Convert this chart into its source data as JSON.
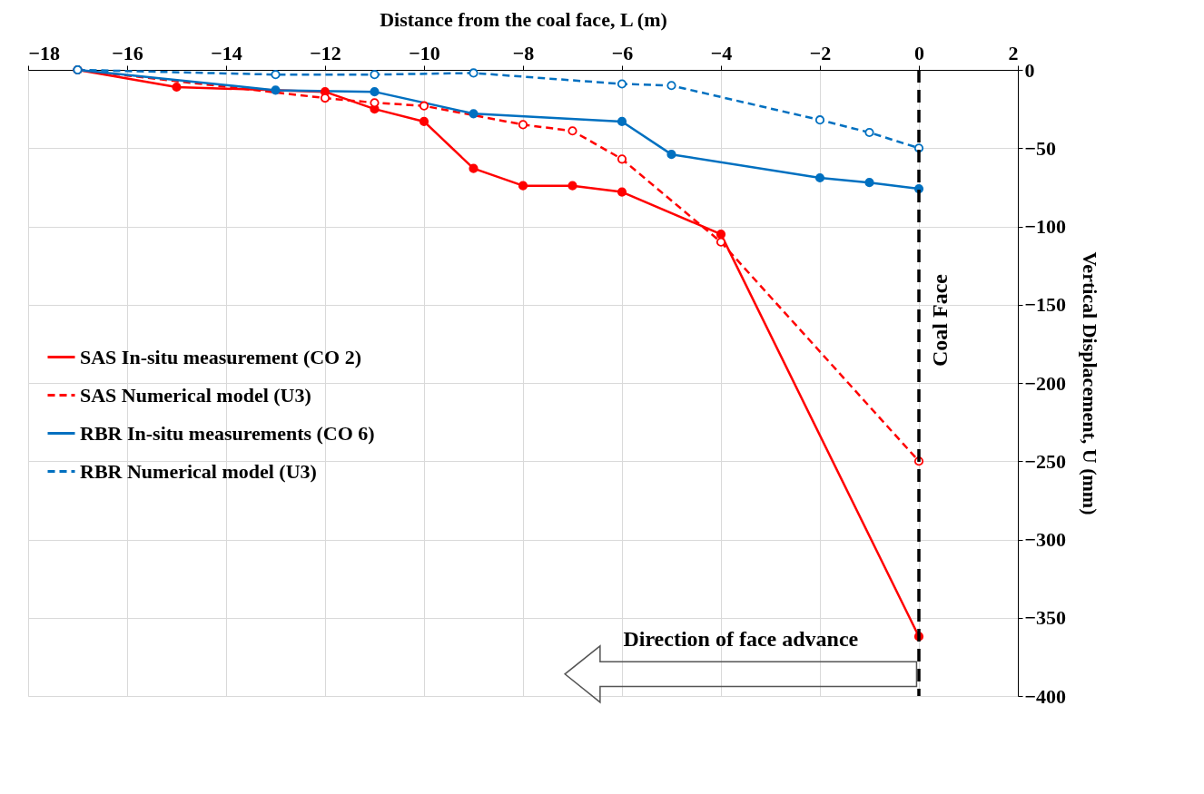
{
  "chart_data": {
    "type": "line",
    "xlabel": "Distance from the coal face, L (m)",
    "ylabel": "Vertical Displacement, U (mm)",
    "xlim": [
      -18,
      2
    ],
    "xticks": [
      -18,
      -16,
      -14,
      -12,
      -10,
      -8,
      -6,
      -4,
      -2,
      0,
      2
    ],
    "ylim": [
      -400,
      0
    ],
    "yticks": [
      -400,
      -350,
      -300,
      -250,
      -200,
      -150,
      -100,
      -50,
      0
    ],
    "grid": true,
    "legend": "left",
    "marker": "circle",
    "series": [
      {
        "name": "SAS In-situ measurement (CO 2)",
        "color": "#ff0000",
        "line_style": "solid",
        "x": [
          -17,
          -15,
          -12,
          -11,
          -10,
          -9,
          -8,
          -7,
          -6,
          -4,
          0
        ],
        "values": [
          0,
          -11,
          -14,
          -25,
          -33,
          -63,
          -74,
          -74,
          -78,
          -105,
          -362
        ]
      },
      {
        "name": "SAS Numerical model (U3)",
        "color": "#ff0000",
        "line_style": "dashed",
        "x": [
          -17,
          -12,
          -11,
          -10,
          -8,
          -7,
          -6,
          -4,
          0
        ],
        "values": [
          0,
          -18,
          -21,
          -23,
          -35,
          -39,
          -57,
          -110,
          -250
        ]
      },
      {
        "name": "RBR In-situ measurements (CO 6)",
        "color": "#0070c0",
        "line_style": "solid",
        "x": [
          -17,
          -13,
          -11,
          -9,
          -6,
          -5,
          -2,
          -1,
          0
        ],
        "values": [
          0,
          -13,
          -14,
          -28,
          -33,
          -54,
          -69,
          -72,
          -76
        ]
      },
      {
        "name": "RBR Numerical model (U3)",
        "color": "#0070c0",
        "line_style": "dashed",
        "x": [
          -17,
          -13,
          -11,
          -9,
          -6,
          -5,
          -2,
          -1,
          0
        ],
        "values": [
          0,
          -3,
          -3,
          -2,
          -9,
          -10,
          -32,
          -40,
          -50
        ]
      }
    ],
    "ref_lines": [
      {
        "axis": "x",
        "value": 0,
        "label": "Coal Face",
        "color": "#000000",
        "line_style": "dashed"
      }
    ],
    "annotations": [
      "Direction of face advance"
    ]
  }
}
